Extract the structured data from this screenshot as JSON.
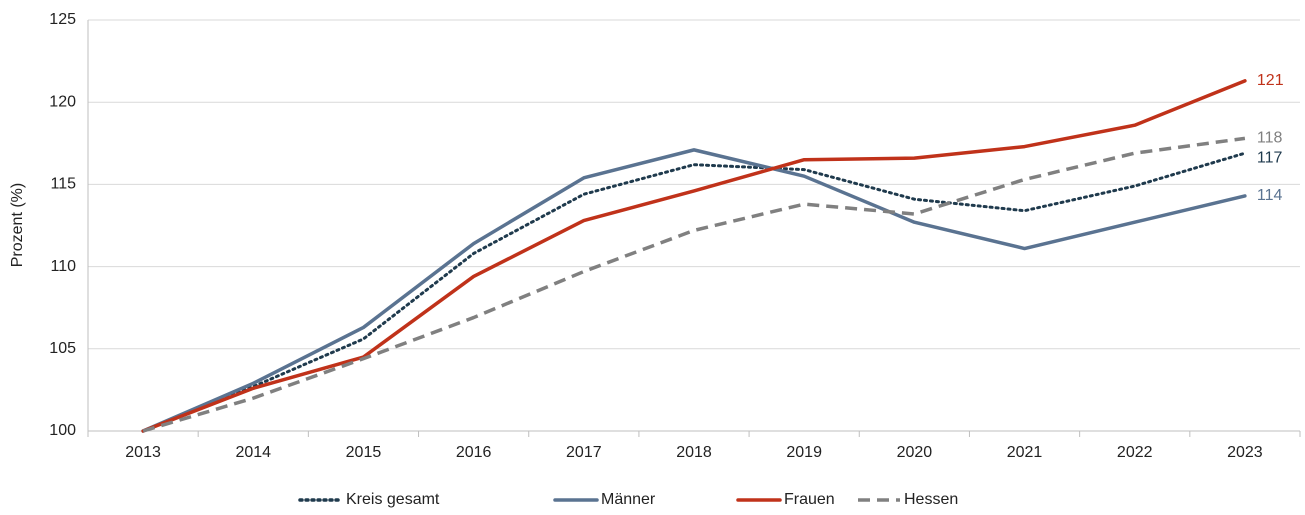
{
  "chart_data": {
    "type": "line",
    "y_label": "Prozent (%)",
    "categories": [
      "2013",
      "2014",
      "2015",
      "2016",
      "2017",
      "2018",
      "2019",
      "2020",
      "2021",
      "2022",
      "2023"
    ],
    "ylim": [
      100,
      125
    ],
    "yticks": [
      100,
      105,
      110,
      115,
      120,
      125
    ],
    "grid": true,
    "legend": "bottom",
    "series": [
      {
        "name": "Kreis gesamt",
        "color": "#1f3a4d",
        "style": "dotted",
        "values": [
          100,
          102.7,
          105.6,
          110.8,
          114.4,
          116.2,
          115.9,
          114.1,
          113.4,
          114.9,
          116.9
        ],
        "value_labels": [
          null,
          null,
          null,
          null,
          null,
          null,
          null,
          null,
          null,
          null,
          "117"
        ]
      },
      {
        "name": "Männer",
        "color": "#5a7391",
        "style": "solid",
        "values": [
          100,
          102.9,
          106.3,
          111.4,
          115.4,
          117.1,
          115.5,
          112.7,
          111.1,
          112.7,
          114.3
        ],
        "value_labels": [
          null,
          null,
          null,
          null,
          null,
          null,
          null,
          null,
          null,
          null,
          "114"
        ]
      },
      {
        "name": "Frauen",
        "color": "#c0321a",
        "style": "solid",
        "values": [
          100,
          102.6,
          104.5,
          109.4,
          112.8,
          114.6,
          116.5,
          116.6,
          117.3,
          118.6,
          121.3
        ],
        "value_labels": [
          null,
          null,
          null,
          null,
          null,
          null,
          null,
          null,
          null,
          null,
          "121"
        ]
      },
      {
        "name": "Hessen",
        "color": "#808080",
        "style": "dashed",
        "values": [
          100,
          102.0,
          104.4,
          106.9,
          109.7,
          112.2,
          113.8,
          113.2,
          115.3,
          116.9,
          117.8
        ],
        "value_labels": [
          null,
          null,
          null,
          null,
          null,
          null,
          null,
          null,
          null,
          null,
          "118"
        ]
      }
    ]
  }
}
